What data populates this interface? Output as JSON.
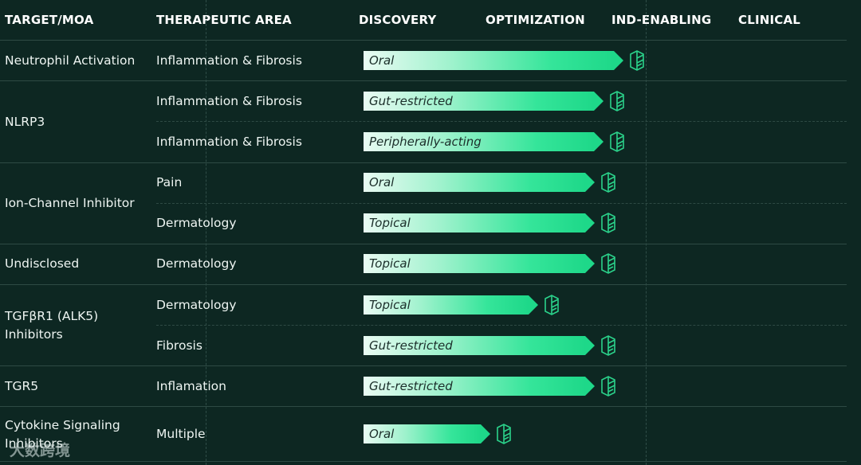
{
  "header": {
    "target": "TARGET/MOA",
    "area": "THERAPEUTIC AREA",
    "discovery": "DISCOVERY",
    "optimization": "OPTIMIZATION",
    "ind": "IND-ENABLING",
    "clinical": "CLINICAL"
  },
  "groups": [
    {
      "target": "Neutrophil Activation"
    },
    {
      "target": "NLRP3"
    },
    {
      "target": "Ion-Channel Inhibitor"
    },
    {
      "target": "Undisclosed"
    },
    {
      "target": "TGFβR1 (ALK5) Inhibitors"
    },
    {
      "target": "TGR5"
    },
    {
      "target": "Cytokine Signaling Inhibitors"
    }
  ],
  "rows": [
    {
      "area": "Inflammation & Fibrosis",
      "route": "Oral",
      "stage_progress": 0.92
    },
    {
      "area": "Inflammation & Fibrosis",
      "route": "Gut-restricted",
      "stage_progress": 0.85
    },
    {
      "area": "Inflammation & Fibrosis",
      "route": "Peripherally-acting",
      "stage_progress": 0.85
    },
    {
      "area": "Pain",
      "route": "Oral",
      "stage_progress": 0.82
    },
    {
      "area": "Dermatology",
      "route": "Topical",
      "stage_progress": 0.82
    },
    {
      "area": "Dermatology",
      "route": "Topical",
      "stage_progress": 0.82
    },
    {
      "area": "Dermatology",
      "route": "Topical",
      "stage_progress": 0.62
    },
    {
      "area": "Fibrosis",
      "route": "Gut-restricted",
      "stage_progress": 0.82
    },
    {
      "area": "Inflamation",
      "route": "Gut-restricted",
      "stage_progress": 0.82
    },
    {
      "area": "Multiple",
      "route": "Oral",
      "stage_progress": 0.45
    }
  ],
  "watermark": "大数跨境",
  "colors": {
    "background": "#0d2722",
    "bar_end": "#1ed889",
    "icon": "#2bd38b"
  }
}
